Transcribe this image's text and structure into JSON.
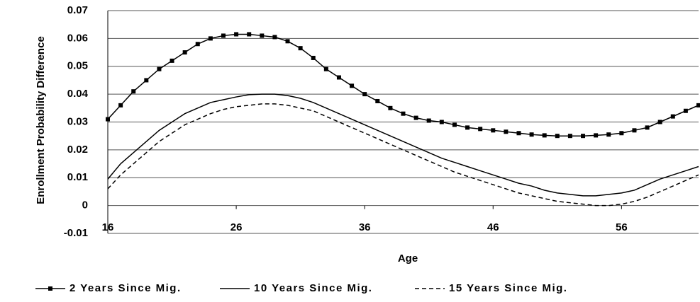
{
  "chart_data": {
    "type": "line",
    "xlabel": "Age",
    "ylabel": "Enrollment Probability Difference",
    "x": [
      16,
      17,
      18,
      19,
      20,
      21,
      22,
      23,
      24,
      25,
      26,
      27,
      28,
      29,
      30,
      31,
      32,
      33,
      34,
      35,
      36,
      37,
      38,
      39,
      40,
      41,
      42,
      43,
      44,
      45,
      46,
      47,
      48,
      49,
      50,
      51,
      52,
      53,
      54,
      55,
      56,
      57,
      58,
      59,
      60,
      61,
      62
    ],
    "xlim": [
      16,
      62
    ],
    "xticks": [
      16,
      26,
      36,
      46,
      56
    ],
    "ylim": [
      -0.01,
      0.07
    ],
    "yticks": [
      -0.01,
      0,
      0.01,
      0.02,
      0.03,
      0.04,
      0.05,
      0.06,
      0.07
    ],
    "grid": true,
    "legend": "bottom",
    "series": [
      {
        "name": "2 Years Since Mig.",
        "color": "#000000",
        "style": "solid",
        "marker": "square",
        "values": [
          0.031,
          0.036,
          0.041,
          0.045,
          0.049,
          0.052,
          0.055,
          0.058,
          0.06,
          0.061,
          0.0615,
          0.0615,
          0.061,
          0.0605,
          0.059,
          0.0565,
          0.053,
          0.049,
          0.046,
          0.043,
          0.04,
          0.0375,
          0.035,
          0.033,
          0.0315,
          0.0305,
          0.03,
          0.029,
          0.028,
          0.0275,
          0.027,
          0.0265,
          0.026,
          0.0255,
          0.0252,
          0.025,
          0.025,
          0.025,
          0.0252,
          0.0255,
          0.026,
          0.027,
          0.028,
          0.03,
          0.032,
          0.034,
          0.036
        ]
      },
      {
        "name": "10 Years Since Mig.",
        "color": "#000000",
        "style": "solid",
        "values": [
          0.0095,
          0.015,
          0.019,
          0.023,
          0.027,
          0.03,
          0.033,
          0.035,
          0.037,
          0.038,
          0.039,
          0.0398,
          0.04,
          0.04,
          0.0395,
          0.0385,
          0.037,
          0.035,
          0.033,
          0.031,
          0.029,
          0.027,
          0.025,
          0.023,
          0.021,
          0.019,
          0.017,
          0.0155,
          0.014,
          0.0125,
          0.011,
          0.0095,
          0.008,
          0.007,
          0.0055,
          0.0045,
          0.004,
          0.0035,
          0.0035,
          0.004,
          0.0045,
          0.0055,
          0.0075,
          0.0095,
          0.011,
          0.0125,
          0.014
        ]
      },
      {
        "name": "15 Years Since Mig.",
        "color": "#000000",
        "style": "dashed",
        "values": [
          0.006,
          0.011,
          0.015,
          0.019,
          0.023,
          0.026,
          0.029,
          0.031,
          0.033,
          0.0345,
          0.0355,
          0.036,
          0.0365,
          0.0365,
          0.036,
          0.035,
          0.034,
          0.032,
          0.03,
          0.028,
          0.026,
          0.024,
          0.022,
          0.02,
          0.018,
          0.016,
          0.014,
          0.012,
          0.0105,
          0.009,
          0.0075,
          0.006,
          0.0045,
          0.0035,
          0.0025,
          0.0015,
          0.001,
          0.0005,
          0,
          0,
          0.0005,
          0.0015,
          0.003,
          0.005,
          0.007,
          0.009,
          0.011
        ]
      }
    ]
  }
}
